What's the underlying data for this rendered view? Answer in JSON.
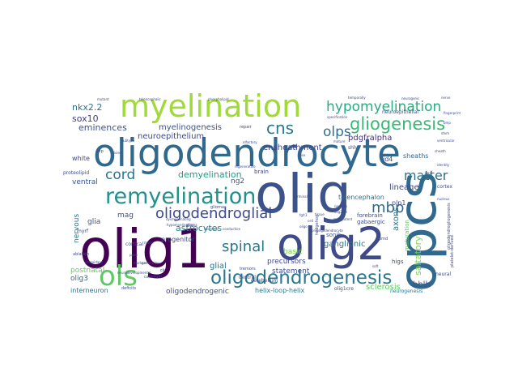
{
  "words": [
    {
      "text": "oligodendrocyte",
      "color": "#31688e"
    },
    {
      "text": "olig",
      "color": "#3b528b"
    },
    {
      "text": "olig1",
      "color": "#440154"
    },
    {
      "text": "olig2",
      "color": "#3e4a89"
    },
    {
      "text": "opcs",
      "color": "#31688e"
    },
    {
      "text": "myelination",
      "color": "#a0da39"
    },
    {
      "text": "remyelination",
      "color": "#21918c"
    },
    {
      "text": "ols",
      "color": "#5ec962"
    },
    {
      "text": "oligodendrogenesis",
      "color": "#2a788e"
    },
    {
      "text": "oligodendroglial",
      "color": "#3e4a89"
    },
    {
      "text": "hypomyelination",
      "color": "#27ad81"
    },
    {
      "text": "gliogenesis",
      "color": "#38b977"
    },
    {
      "text": "cns",
      "color": "#2a788e"
    },
    {
      "text": "olps",
      "color": "#2d708e"
    },
    {
      "text": "matter",
      "color": "#2d708e"
    },
    {
      "text": "mbp",
      "color": "#31688e"
    },
    {
      "text": "spinal",
      "color": "#2a788e"
    },
    {
      "text": "cord",
      "color": "#2c728e"
    },
    {
      "text": "nkx2.2",
      "color": "#2d708e"
    },
    {
      "text": "sox10",
      "color": "#433e85"
    },
    {
      "text": "eminences",
      "color": "#3b528b"
    },
    {
      "text": "neuroepithelium",
      "color": "#3e4a89"
    },
    {
      "text": "myelinogenesis",
      "color": "#3b528b"
    },
    {
      "text": "ensheathment",
      "color": "#414487"
    },
    {
      "text": "pdgfralpha",
      "color": "#46327e"
    },
    {
      "text": "demyelination",
      "color": "#1f9e89"
    },
    {
      "text": "lineage",
      "color": "#3e4a89"
    },
    {
      "text": "astrocytes",
      "color": "#25858e"
    },
    {
      "text": "axons",
      "color": "#2a788e"
    },
    {
      "text": "saltatory",
      "color": "#7ad151"
    },
    {
      "text": "glial",
      "color": "#2c728e"
    },
    {
      "text": "ganglionic",
      "color": "#2a788e"
    },
    {
      "text": "sclerosis",
      "color": "#5ec962"
    },
    {
      "text": "bhlh",
      "color": "#3b528b"
    },
    {
      "text": "ventral",
      "color": "#3b528b"
    },
    {
      "text": "glia",
      "color": "#3b528b"
    },
    {
      "text": "nervous",
      "color": "#2c728e"
    },
    {
      "text": "mag",
      "color": "#3b528b"
    },
    {
      "text": "progenitor",
      "color": "#3e4a89"
    },
    {
      "text": "precursors",
      "color": "#3e4a89"
    },
    {
      "text": "statement",
      "color": "#3b528b"
    },
    {
      "text": "basic",
      "color": "#7ad151"
    },
    {
      "text": "postnatal",
      "color": "#5ec962"
    },
    {
      "text": "olig3",
      "color": "#31688e"
    },
    {
      "text": "oligodendrogenic",
      "color": "#3b528b"
    },
    {
      "text": "helix-loop-helix",
      "color": "#2a788e"
    },
    {
      "text": "interneuron",
      "color": "#2c728e"
    },
    {
      "text": "white",
      "color": "#3e4a89"
    },
    {
      "text": "id4",
      "color": "#433e85"
    },
    {
      "text": "plp1",
      "color": "#3e4a89"
    },
    {
      "text": "sheaths",
      "color": "#31688e"
    },
    {
      "text": "telencephalon",
      "color": "#2d708e"
    },
    {
      "text": "forebrain",
      "color": "#3e4a89"
    },
    {
      "text": "gabaergic",
      "color": "#3e4a89"
    },
    {
      "text": "sonic",
      "color": "#3b528b"
    },
    {
      "text": "maturation",
      "color": "#5ec962"
    },
    {
      "text": "higs",
      "color": "#3e4a89"
    },
    {
      "text": "neural",
      "color": "#3e4a89"
    },
    {
      "text": "neurogenesis",
      "color": "#2a788e"
    },
    {
      "text": "ng2",
      "color": "#3b528b"
    },
    {
      "text": "brain",
      "color": "#3e4a89"
    },
    {
      "text": "cortical",
      "color": "#3e4a89"
    },
    {
      "text": "cerebellum",
      "color": "#3e4a89"
    },
    {
      "text": "central",
      "color": "#3e4a89"
    },
    {
      "text": "shh",
      "color": "#3e4a89"
    },
    {
      "text": "cortex",
      "color": "#3e4a89"
    },
    {
      "text": "proteolipid",
      "color": "#3e4a89"
    },
    {
      "text": "oligodendrogliogenesis",
      "color": "#3e4a89"
    },
    {
      "text": "ablation",
      "color": "#3e4a89"
    },
    {
      "text": "deficits",
      "color": "#3e4a89"
    },
    {
      "text": "callosum",
      "color": "#3e4a89"
    },
    {
      "text": "myrf",
      "color": "#3e4a89"
    },
    {
      "text": "neuroepithelial",
      "color": "#3e4a89"
    },
    {
      "text": "olig1cre",
      "color": "#3e4a89"
    },
    {
      "text": "hedgehog",
      "color": "#3e4a89"
    },
    {
      "text": "tremors",
      "color": "#3e4a89"
    },
    {
      "text": "repair",
      "color": "#3e4a89"
    },
    {
      "text": "plp",
      "color": "#3e4a89"
    },
    {
      "text": "gliomas",
      "color": "#3e4a89"
    },
    {
      "text": "pmd",
      "color": "#3e4a89"
    },
    {
      "text": "ck",
      "color": "#3e4a89"
    },
    {
      "text": "dysmyelinating",
      "color": "#3e4a89"
    },
    {
      "text": "hypomyelinating",
      "color": "#3e4a89"
    },
    {
      "text": "fgfr3",
      "color": "#3e4a89"
    },
    {
      "text": "multipotent",
      "color": "#3e4a89"
    },
    {
      "text": "olfactory",
      "color": "#3e4a89"
    },
    {
      "text": "specification",
      "color": "#3e4a89"
    },
    {
      "text": "regenerative",
      "color": "#3e4a89"
    },
    {
      "text": "germinal",
      "color": "#3e4a89"
    },
    {
      "text": "tissue",
      "color": "#3e4a89"
    },
    {
      "text": "neurons",
      "color": "#3e4a89"
    },
    {
      "text": "olig2cre",
      "color": "#3e4a89"
    },
    {
      "text": "cell",
      "color": "#3e4a89"
    },
    {
      "text": "oligo",
      "color": "#3e4a89"
    },
    {
      "text": "motor",
      "color": "#3e4a89"
    },
    {
      "text": "pax6",
      "color": "#3e4a89"
    },
    {
      "text": "markers",
      "color": "#3e4a89"
    },
    {
      "text": "neurodevelopmental",
      "color": "#3e4a89"
    },
    {
      "text": "soft",
      "color": "#3e4a89"
    },
    {
      "text": "rise",
      "color": "#3e4a89"
    },
    {
      "text": "platelet-derived",
      "color": "#3e4a89"
    },
    {
      "text": "mature",
      "color": "#3e4a89"
    },
    {
      "text": "telencephalic",
      "color": "#3e4a89"
    },
    {
      "text": "phospholipid",
      "color": "#3e4a89"
    },
    {
      "text": "temporally",
      "color": "#3e4a89"
    },
    {
      "text": "neurogenic",
      "color": "#3e4a89"
    },
    {
      "text": "nerve",
      "color": "#3e4a89"
    },
    {
      "text": "fingerprint",
      "color": "#3e4a89"
    },
    {
      "text": "bmp",
      "color": "#3e4a89"
    },
    {
      "text": "stem",
      "color": "#3e4a89"
    },
    {
      "text": "ventricular",
      "color": "#3e4a89"
    },
    {
      "text": "sheath",
      "color": "#3e4a89"
    },
    {
      "text": "identity",
      "color": "#3e4a89"
    },
    {
      "text": "nucleus",
      "color": "#3e4a89"
    },
    {
      "text": "subtype",
      "color": "#3e4a89"
    },
    {
      "text": "generation",
      "color": "#3e4a89"
    },
    {
      "text": "peroxidase",
      "color": "#3e4a89"
    },
    {
      "text": "mutant",
      "color": "#3e4a89"
    },
    {
      "text": "conduction",
      "color": "#3e4a89"
    },
    {
      "text": "neuronal",
      "color": "#3e4a89"
    },
    {
      "text": "glioma",
      "color": "#3e4a89"
    },
    {
      "text": "preoligodendrocyte",
      "color": "#3e4a89"
    },
    {
      "text": "zone",
      "color": "#3e4a89"
    },
    {
      "text": "embryonic",
      "color": "#3e4a89"
    }
  ]
}
